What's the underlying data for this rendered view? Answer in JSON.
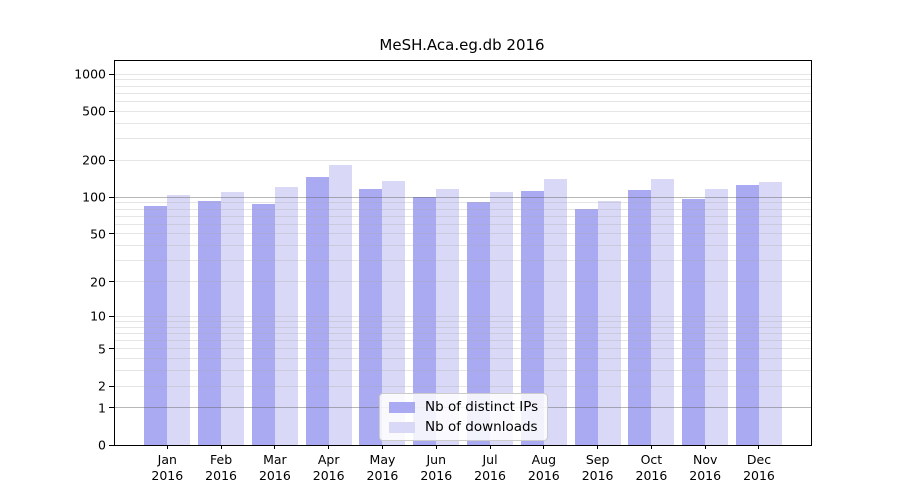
{
  "chart_data": {
    "type": "bar",
    "title": "MeSH.Aca.eg.db 2016",
    "categories": [
      "Jan",
      "Feb",
      "Mar",
      "Apr",
      "May",
      "Jun",
      "Jul",
      "Aug",
      "Sep",
      "Oct",
      "Nov",
      "Dec"
    ],
    "year": "2016",
    "series": [
      {
        "name": "Nb of distinct IPs",
        "color": "#aaaaf2",
        "values": [
          85,
          94,
          89,
          147,
          116,
          101,
          91,
          112,
          81,
          114,
          96,
          125
        ]
      },
      {
        "name": "Nb of downloads",
        "color": "#d9d9f7",
        "values": [
          104,
          111,
          122,
          184,
          137,
          118,
          110,
          140,
          93,
          141,
          117,
          134
        ]
      }
    ],
    "xlabel": "",
    "ylabel": "",
    "yscale": "log1p",
    "ylim": [
      0,
      1280
    ],
    "yticks": [
      0,
      1,
      2,
      5,
      10,
      20,
      50,
      100,
      200,
      500,
      1000
    ],
    "grid": true,
    "grid_major_values": [
      1,
      100
    ],
    "legend_position": "lower center"
  }
}
